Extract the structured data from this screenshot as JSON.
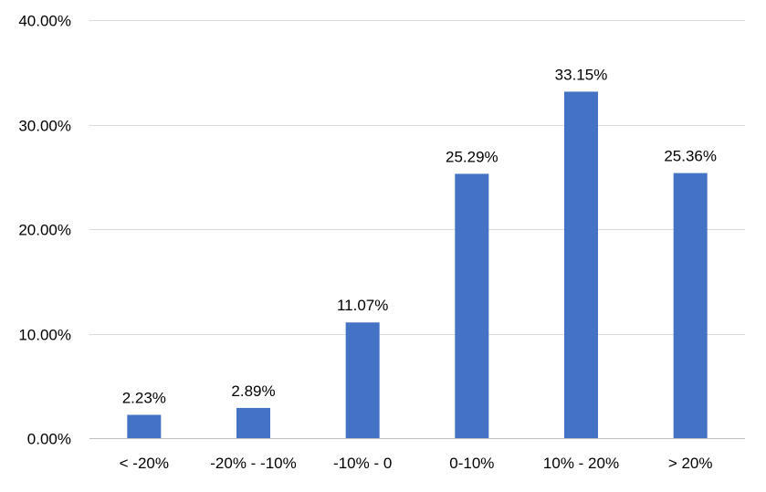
{
  "chart_data": {
    "type": "bar",
    "categories": [
      "< -20%",
      "-20% - -10%",
      "-10% - 0",
      "0-10%",
      "10% - 20%",
      "> 20%"
    ],
    "values": [
      2.23,
      2.89,
      11.07,
      25.29,
      33.15,
      25.36
    ],
    "data_labels": [
      "2.23%",
      "2.89%",
      "11.07%",
      "25.29%",
      "33.15%",
      "25.36%"
    ],
    "y_ticks": [
      0,
      10,
      20,
      30,
      40
    ],
    "y_tick_labels": [
      "0.00%",
      "10.00%",
      "20.00%",
      "30.00%",
      "40.00%"
    ],
    "ylim": [
      0,
      40
    ],
    "title": "",
    "xlabel": "",
    "ylabel": "",
    "grid": true,
    "legend": "none",
    "bar_color": "#4472C4"
  }
}
